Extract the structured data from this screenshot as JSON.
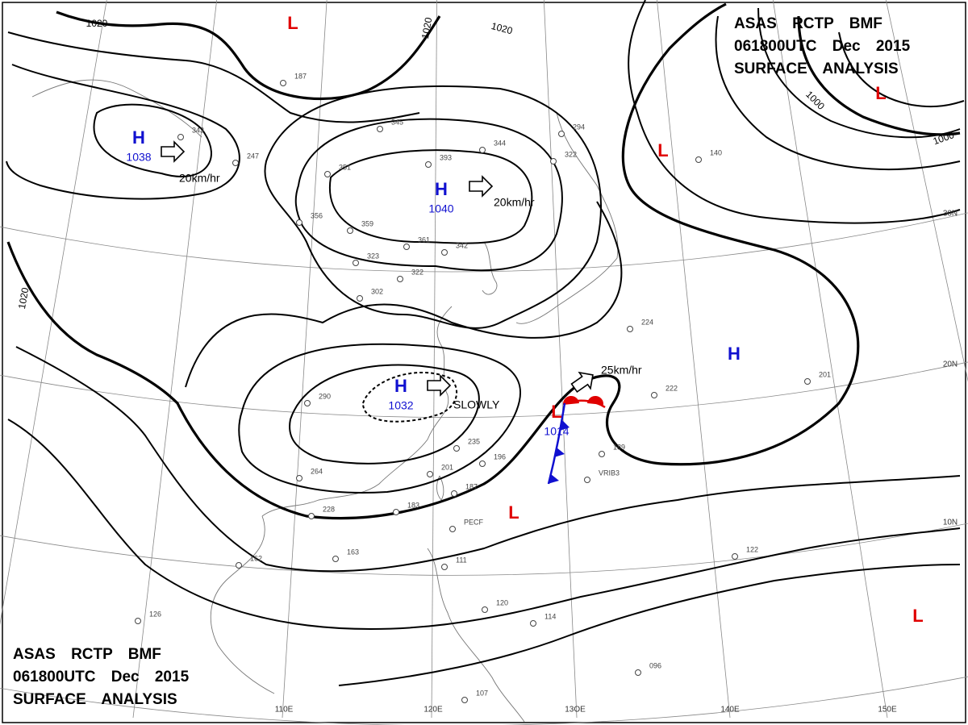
{
  "header_top": {
    "line1": "ASAS RCTP BMF",
    "line2": "061800UTC Dec 2015",
    "line3": "SURFACE ANALYSIS"
  },
  "header_bottom": {
    "line1": "ASAS RCTP BMF",
    "line2": "061800UTC Dec 2015",
    "line3": "SURFACE ANALYSIS"
  },
  "isobar_labels": [
    "1020",
    "1020",
    "1020",
    "1020",
    "1000",
    "1000"
  ],
  "pressure_systems": [
    {
      "label": "H",
      "value": "1038"
    },
    {
      "label": "H",
      "value": "1040"
    },
    {
      "label": "H",
      "value": "1032"
    },
    {
      "label": "H"
    },
    {
      "label": "L",
      "value": "1014"
    },
    {
      "label": "L"
    },
    {
      "label": "L"
    },
    {
      "label": "L"
    },
    {
      "label": "L"
    },
    {
      "label": "L"
    }
  ],
  "motions": [
    "20km/hr",
    "20km/hr",
    "25km/hr",
    "SLOWLY"
  ],
  "grid_labels": [
    "110E",
    "120E",
    "13OE",
    "140E",
    "150E",
    "30N",
    "20N",
    "10N"
  ],
  "stations": [
    "343",
    "247",
    "187",
    "345",
    "351",
    "356",
    "393",
    "344",
    "359",
    "361",
    "342",
    "323",
    "322",
    "302",
    "294",
    "322",
    "224",
    "222",
    "201",
    "189",
    "140",
    "290",
    "264",
    "228",
    "235",
    "196",
    "201",
    "187",
    "183",
    "163",
    "162",
    "122",
    "126",
    "111",
    "120",
    "114",
    "096",
    "107",
    "PECF",
    "VRIB3"
  ]
}
